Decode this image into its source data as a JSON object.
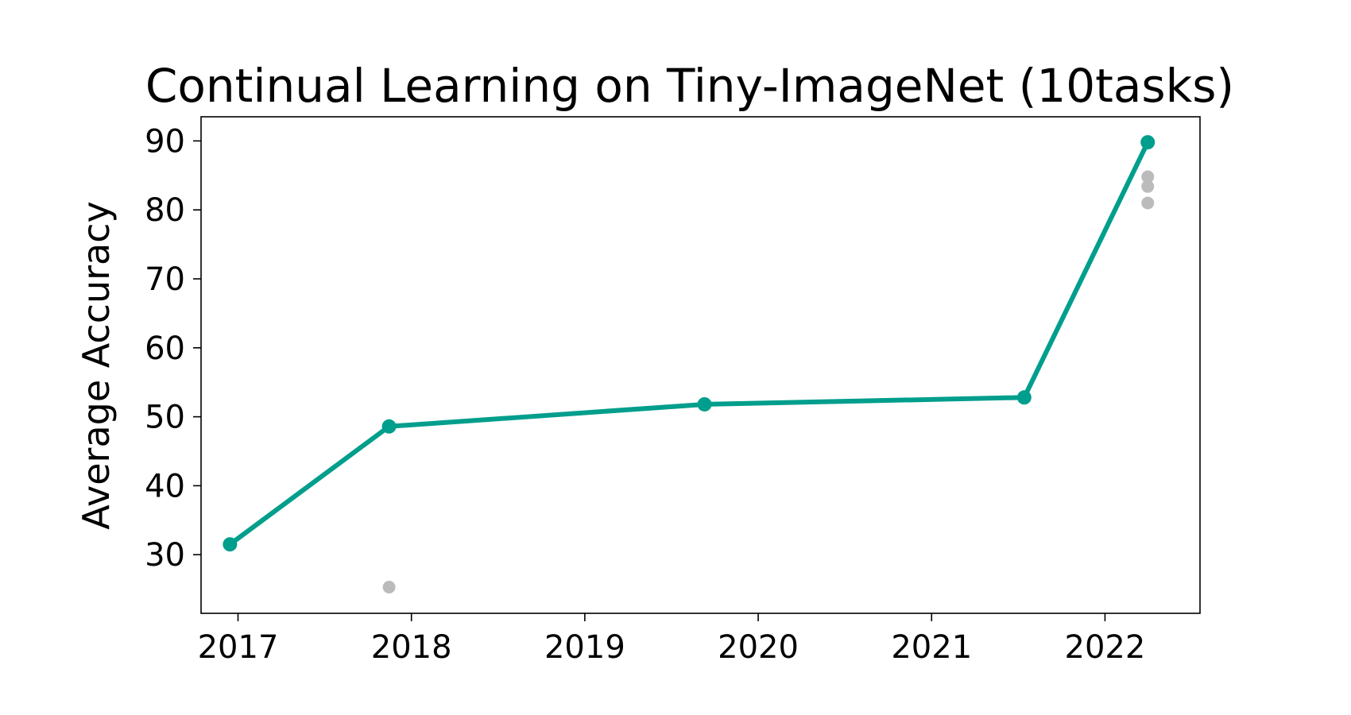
{
  "chart_data": {
    "type": "line",
    "title": "Continual Learning on Tiny-ImageNet (10tasks)",
    "xlabel": "",
    "ylabel": "Average Accuracy",
    "xlim": [
      "2016-10-15",
      "2022-07-20"
    ],
    "ylim": [
      21.5,
      93.5
    ],
    "xticks": [
      "2017",
      "2018",
      "2019",
      "2020",
      "2021",
      "2022"
    ],
    "yticks": [
      "30",
      "40",
      "50",
      "60",
      "70",
      "80",
      "90"
    ],
    "grid": false,
    "series": [
      {
        "color": "#009e8c",
        "style": "line+markers",
        "points": [
          {
            "x": "2016-12-15",
            "y": 31.5
          },
          {
            "x": "2017-11-15",
            "y": 48.6
          },
          {
            "x": "2019-09-10",
            "y": 51.8
          },
          {
            "x": "2021-07-15",
            "y": 52.8
          },
          {
            "x": "2022-04-01",
            "y": 89.8
          }
        ]
      },
      {
        "color": "#bbbbbb",
        "style": "markers",
        "points": [
          {
            "x": "2017-11-15",
            "y": 25.3
          },
          {
            "x": "2022-04-01",
            "y": 84.8
          },
          {
            "x": "2022-04-01",
            "y": 83.4
          },
          {
            "x": "2022-04-01",
            "y": 81.0
          }
        ]
      }
    ]
  }
}
